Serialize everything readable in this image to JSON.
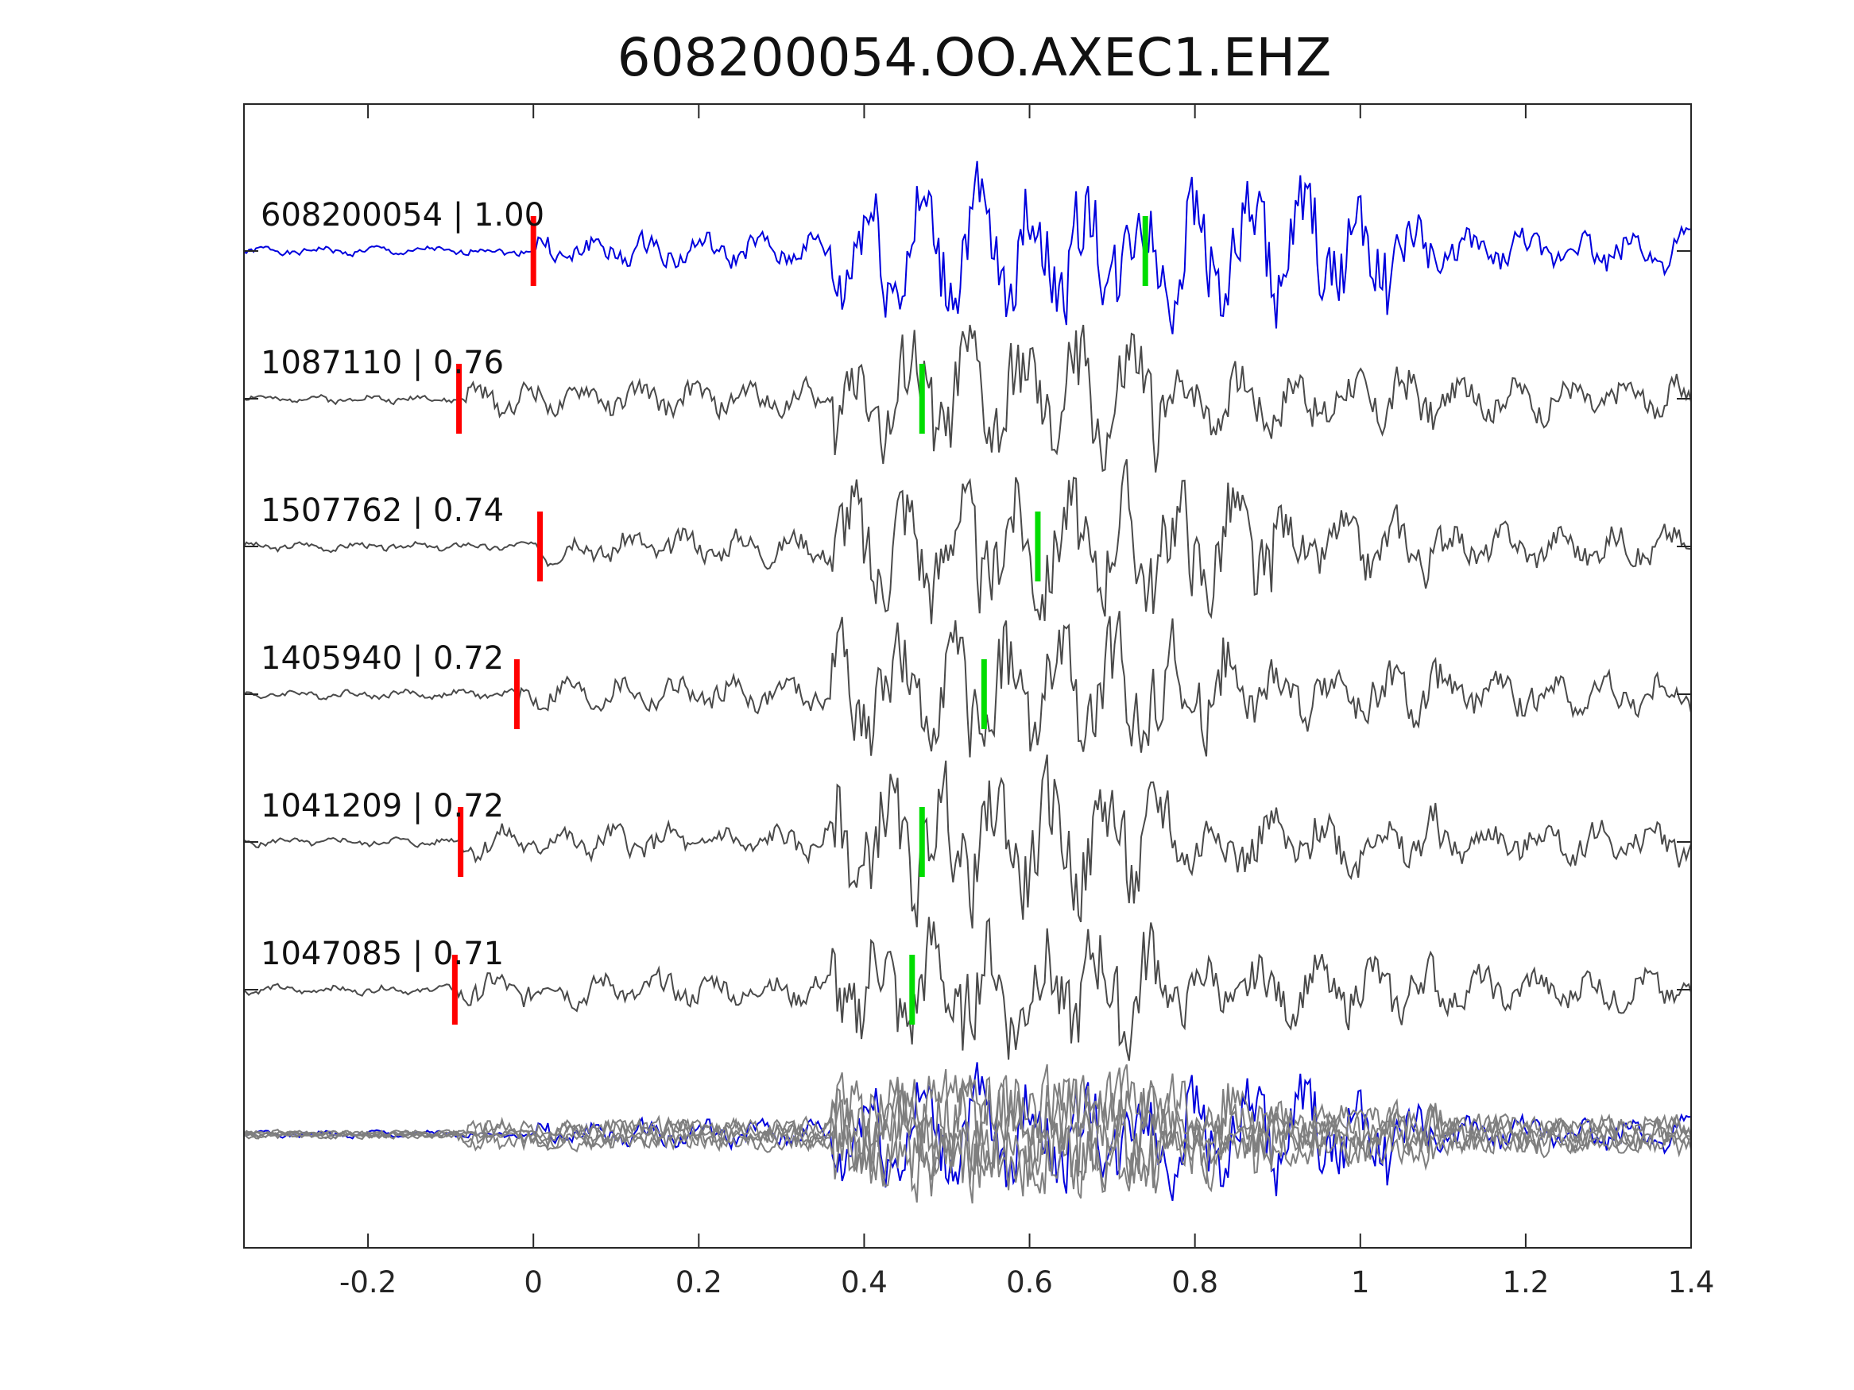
{
  "chart_data": {
    "type": "line",
    "title": "608200054.OO.AXEC1.EHZ",
    "xlabel": "",
    "ylabel": "",
    "xlim": [
      -0.35,
      1.4
    ],
    "xticks": [
      -0.2,
      0,
      0.2,
      0.4,
      0.6,
      0.8,
      1,
      1.2,
      1.4
    ],
    "xtick_labels": [
      "-0.2",
      "0",
      "0.2",
      "0.4",
      "0.6",
      "0.8",
      "1",
      "1.2",
      "1.4"
    ],
    "grid": false,
    "colors": {
      "reference": "#0000dd",
      "match": "#4a4a4a",
      "overlay": "#7f7f7f",
      "p_pick": "#ff0000",
      "s_pick": "#00dd00",
      "axis": "#262626"
    },
    "traces": [
      {
        "id": "608200054",
        "cc": "1.00",
        "label": "608200054 | 1.00",
        "p_pick": 0.0,
        "s_pick": 0.74,
        "reference": true,
        "seed": 1
      },
      {
        "id": "1087110",
        "cc": "0.76",
        "label": "1087110 | 0.76",
        "p_pick": -0.09,
        "s_pick": 0.47,
        "reference": false,
        "seed": 2
      },
      {
        "id": "1507762",
        "cc": "0.74",
        "label": "1507762 | 0.74",
        "p_pick": 0.008,
        "s_pick": 0.61,
        "reference": false,
        "seed": 3
      },
      {
        "id": "1405940",
        "cc": "0.72",
        "label": "1405940 | 0.72",
        "p_pick": -0.02,
        "s_pick": 0.545,
        "reference": false,
        "seed": 4
      },
      {
        "id": "1041209",
        "cc": "0.72",
        "label": "1041209 | 0.72",
        "p_pick": -0.088,
        "s_pick": 0.47,
        "reference": false,
        "seed": 5
      },
      {
        "id": "1047085",
        "cc": "0.71",
        "label": "1047085 | 0.71",
        "p_pick": -0.095,
        "s_pick": 0.458,
        "reference": false,
        "seed": 6
      }
    ],
    "stack": {
      "description_shown": false
    }
  }
}
